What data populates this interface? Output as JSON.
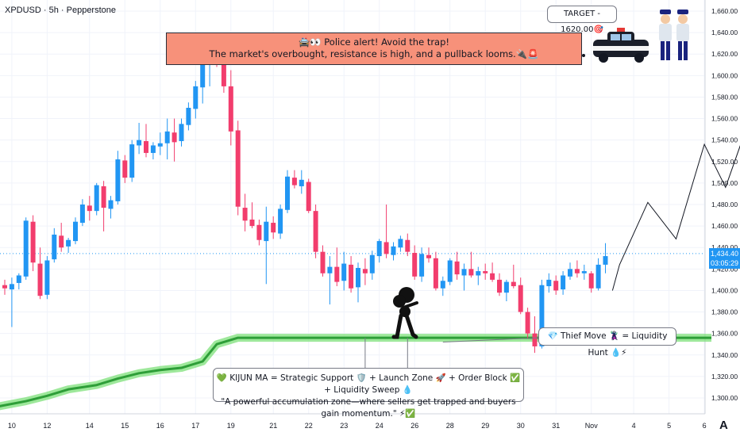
{
  "header": {
    "symbol_line": "XPDUSD · 5h · Pepperstone"
  },
  "annotations": {
    "alert_line1": "🚔👀 Police alert!  Avoid the trap!",
    "alert_line2": "The market's overbought, resistance is high, and a pullback looms.🔌🚨",
    "target": "TARGET - 1620.00🎯",
    "thief": "💎 Thief Move 🦹 = Liquidity Hunt 💧⚡",
    "kijun_line1": "💚 KIJUN MA = Strategic Support 🛡️ + Launch Zone 🚀 + Order Block ✅ + Liquidity Sweep 💧",
    "kijun_line2": "\"A powerful accumulation zone—where sellers get trapped and buyers gain momentum.\" ⚡✅"
  },
  "price_tag": {
    "price": "1,434.40",
    "countdown": "03:05:29"
  },
  "logo": "A",
  "colors": {
    "up": "#2196f3",
    "down": "#f23d6d",
    "kijun": "#4caf50",
    "kijun_glow": "#7ee07a",
    "alert_bg": "#f7917a",
    "grid": "#f0f3fa",
    "axis_text": "#131722"
  },
  "chart_data": {
    "type": "candlestick",
    "symbol": "XPDUSD",
    "timeframe": "5h",
    "broker": "Pepperstone",
    "ylim": [
      1280,
      1670
    ],
    "y_ticks": [
      "1,300.00",
      "1,320.00",
      "1,340.00",
      "1,360.00",
      "1,380.00",
      "1,400.00",
      "1,420.00",
      "1,440.00",
      "1,460.00",
      "1,480.00",
      "1,500.00",
      "1,520.00",
      "1,540.00",
      "1,560.00",
      "1,580.00",
      "1,600.00",
      "1,620.00",
      "1,640.00",
      "1,660.00"
    ],
    "x_ticks": [
      {
        "label": "10",
        "bar": 1
      },
      {
        "label": "12",
        "bar": 6
      },
      {
        "label": "14",
        "bar": 12
      },
      {
        "label": "15",
        "bar": 17
      },
      {
        "label": "16",
        "bar": 22
      },
      {
        "label": "17",
        "bar": 27
      },
      {
        "label": "19",
        "bar": 32
      },
      {
        "label": "21",
        "bar": 38
      },
      {
        "label": "22",
        "bar": 43
      },
      {
        "label": "23",
        "bar": 48
      },
      {
        "label": "24",
        "bar": 53
      },
      {
        "label": "26",
        "bar": 58
      },
      {
        "label": "28",
        "bar": 63
      },
      {
        "label": "29",
        "bar": 68
      },
      {
        "label": "30",
        "bar": 73
      },
      {
        "label": "31",
        "bar": 78
      },
      {
        "label": "Nov",
        "bar": 83
      },
      {
        "label": "4",
        "bar": 89
      },
      {
        "label": "5",
        "bar": 94
      },
      {
        "label": "6",
        "bar": 99
      }
    ],
    "candles": [
      [
        1405,
        1410,
        1396,
        1402
      ],
      [
        1401,
        1412,
        1366,
        1406
      ],
      [
        1407,
        1416,
        1401,
        1414
      ],
      [
        1413,
        1468,
        1410,
        1465
      ],
      [
        1464,
        1470,
        1418,
        1426
      ],
      [
        1425,
        1440,
        1392,
        1395
      ],
      [
        1396,
        1432,
        1392,
        1428
      ],
      [
        1429,
        1458,
        1426,
        1452
      ],
      [
        1451,
        1463,
        1436,
        1440
      ],
      [
        1441,
        1449,
        1435,
        1447
      ],
      [
        1446,
        1468,
        1443,
        1464
      ],
      [
        1463,
        1485,
        1460,
        1480
      ],
      [
        1479,
        1488,
        1465,
        1474
      ],
      [
        1474,
        1500,
        1470,
        1498
      ],
      [
        1497,
        1502,
        1455,
        1477
      ],
      [
        1476,
        1488,
        1467,
        1484
      ],
      [
        1483,
        1530,
        1480,
        1522
      ],
      [
        1521,
        1526,
        1500,
        1505
      ],
      [
        1505,
        1540,
        1501,
        1536
      ],
      [
        1535,
        1556,
        1527,
        1540
      ],
      [
        1539,
        1555,
        1524,
        1528
      ],
      [
        1528,
        1538,
        1522,
        1535
      ],
      [
        1534,
        1547,
        1526,
        1537
      ],
      [
        1537,
        1560,
        1522,
        1548
      ],
      [
        1547,
        1560,
        1520,
        1538
      ],
      [
        1539,
        1560,
        1534,
        1555
      ],
      [
        1554,
        1575,
        1549,
        1570
      ],
      [
        1569,
        1595,
        1560,
        1590
      ],
      [
        1589,
        1618,
        1574,
        1612
      ],
      [
        1611,
        1628,
        1590,
        1620
      ],
      [
        1619,
        1635,
        1608,
        1612
      ],
      [
        1611,
        1628,
        1584,
        1590
      ],
      [
        1590,
        1605,
        1535,
        1548
      ],
      [
        1549,
        1558,
        1470,
        1478
      ],
      [
        1477,
        1490,
        1455,
        1465
      ],
      [
        1466,
        1482,
        1458,
        1460
      ],
      [
        1461,
        1466,
        1442,
        1447
      ],
      [
        1446,
        1478,
        1406,
        1464
      ],
      [
        1463,
        1469,
        1448,
        1454
      ],
      [
        1453,
        1480,
        1448,
        1476
      ],
      [
        1475,
        1512,
        1472,
        1506
      ],
      [
        1505,
        1512,
        1495,
        1498
      ],
      [
        1497,
        1512,
        1490,
        1503
      ],
      [
        1501,
        1504,
        1472,
        1474
      ],
      [
        1474,
        1480,
        1430,
        1436
      ],
      [
        1436,
        1442,
        1413,
        1416
      ],
      [
        1416,
        1432,
        1387,
        1422
      ],
      [
        1422,
        1440,
        1404,
        1408
      ],
      [
        1409,
        1436,
        1400,
        1425
      ],
      [
        1424,
        1432,
        1398,
        1402
      ],
      [
        1403,
        1426,
        1389,
        1421
      ],
      [
        1420,
        1430,
        1405,
        1416
      ],
      [
        1416,
        1437,
        1410,
        1433
      ],
      [
        1432,
        1448,
        1426,
        1446
      ],
      [
        1445,
        1480,
        1430,
        1434
      ],
      [
        1433,
        1445,
        1428,
        1441
      ],
      [
        1440,
        1451,
        1436,
        1448
      ],
      [
        1447,
        1453,
        1432,
        1436
      ],
      [
        1435,
        1442,
        1410,
        1413
      ],
      [
        1413,
        1440,
        1408,
        1434
      ],
      [
        1433,
        1440,
        1426,
        1430
      ],
      [
        1430,
        1436,
        1400,
        1402
      ],
      [
        1402,
        1413,
        1395,
        1409
      ],
      [
        1408,
        1430,
        1405,
        1428
      ],
      [
        1427,
        1436,
        1410,
        1415
      ],
      [
        1414,
        1425,
        1400,
        1420
      ],
      [
        1420,
        1436,
        1412,
        1414
      ],
      [
        1414,
        1422,
        1405,
        1418
      ],
      [
        1418,
        1425,
        1410,
        1416
      ],
      [
        1416,
        1426,
        1408,
        1410
      ],
      [
        1410,
        1416,
        1395,
        1398
      ],
      [
        1398,
        1410,
        1390,
        1408
      ],
      [
        1408,
        1424,
        1402,
        1404
      ],
      [
        1405,
        1412,
        1378,
        1380
      ],
      [
        1380,
        1384,
        1355,
        1360
      ],
      [
        1360,
        1376,
        1342,
        1348
      ],
      [
        1348,
        1410,
        1346,
        1405
      ],
      [
        1404,
        1416,
        1398,
        1410
      ],
      [
        1409,
        1414,
        1396,
        1400
      ],
      [
        1401,
        1418,
        1396,
        1414
      ],
      [
        1413,
        1426,
        1410,
        1420
      ],
      [
        1420,
        1428,
        1412,
        1416
      ],
      [
        1416,
        1424,
        1410,
        1418
      ],
      [
        1416,
        1418,
        1398,
        1402
      ],
      [
        1402,
        1430,
        1400,
        1424
      ],
      [
        1424,
        1444,
        1416,
        1432
      ]
    ],
    "kijun_ma": [
      [
        -1,
        1292
      ],
      [
        3,
        1297
      ],
      [
        6,
        1302
      ],
      [
        9,
        1308
      ],
      [
        13,
        1312
      ],
      [
        16,
        1318
      ],
      [
        19,
        1323
      ],
      [
        22,
        1326
      ],
      [
        25,
        1328
      ],
      [
        28,
        1334
      ],
      [
        30,
        1350
      ],
      [
        33,
        1356
      ],
      [
        36,
        1356
      ],
      [
        100,
        1356
      ]
    ],
    "projection": [
      [
        86,
        1400
      ],
      [
        87,
        1424
      ],
      [
        91,
        1482
      ],
      [
        95,
        1448
      ],
      [
        99,
        1536
      ],
      [
        102,
        1496
      ],
      [
        108,
        1608
      ]
    ],
    "current_price": 1434.4
  }
}
